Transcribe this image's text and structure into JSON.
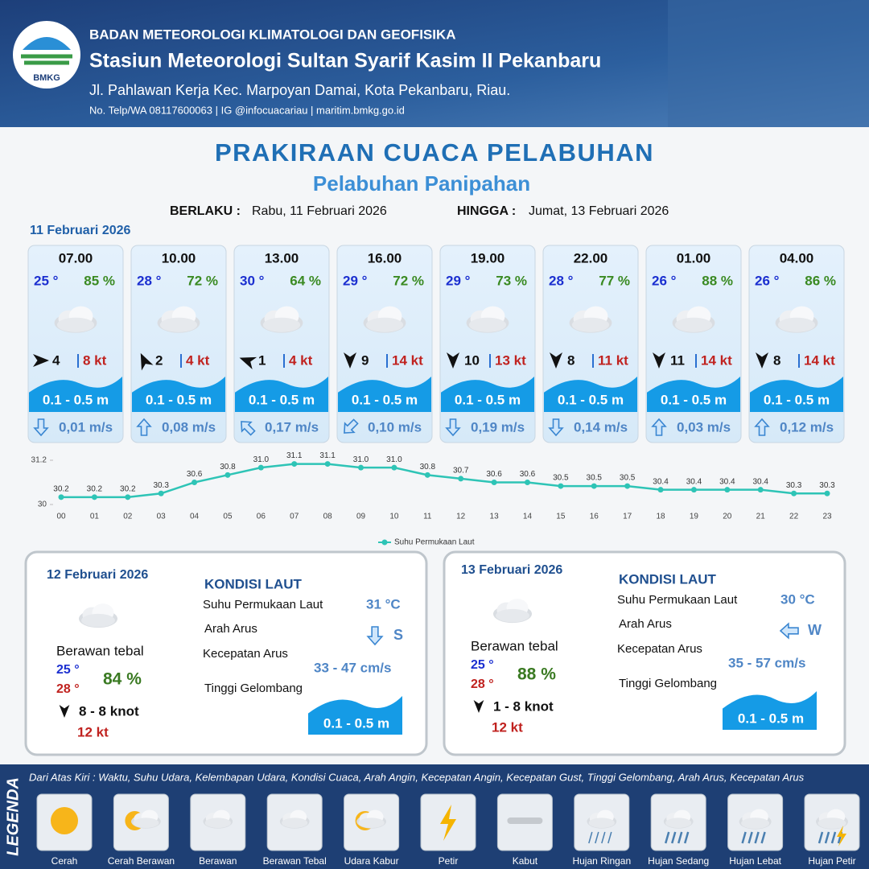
{
  "header": {
    "logo_text": "BMKG",
    "agency": "BADAN METEOROLOGI KLIMATOLOGI DAN GEOFISIKA",
    "station": "Stasiun Meteorologi Sultan Syarif Kasim II Pekanbaru",
    "address": "Jl. Pahlawan Kerja Kec. Marpoyan Damai, Kota Pekanbaru, Riau.",
    "contact": "No. Telp/WA 08117600063 | IG @infocuacariau | maritim.bmkg.go.id"
  },
  "title": "PRAKIRAAN CUACA PELABUHAN",
  "subtitle": "Pelabuhan Panipahan",
  "validity": {
    "from_label": "BERLAKU :",
    "from": "Rabu, 11 Februari 2026",
    "to_label": "HINGGA :",
    "to": "Jumat, 13 Februari 2026"
  },
  "day1": {
    "date": "11 Februari 2026",
    "forecasts": [
      {
        "time": "07.00",
        "temp": "25 °",
        "humidity": "85 %",
        "wind": "4",
        "gust": "8 kt",
        "wave": "0.1 - 0.5 m",
        "current": "0,01 m/s"
      },
      {
        "time": "10.00",
        "temp": "28 °",
        "humidity": "72 %",
        "wind": "2",
        "gust": "4 kt",
        "wave": "0.1 - 0.5 m",
        "current": "0,08 m/s"
      },
      {
        "time": "13.00",
        "temp": "30 °",
        "humidity": "64 %",
        "wind": "1",
        "gust": "4 kt",
        "wave": "0.1 - 0.5 m",
        "current": "0,17 m/s"
      },
      {
        "time": "16.00",
        "temp": "29 °",
        "humidity": "72 %",
        "wind": "9",
        "gust": "14 kt",
        "wave": "0.1 - 0.5 m",
        "current": "0,10 m/s"
      },
      {
        "time": "19.00",
        "temp": "29 °",
        "humidity": "73 %",
        "wind": "10",
        "gust": "13 kt",
        "wave": "0.1 - 0.5 m",
        "current": "0,19 m/s"
      },
      {
        "time": "22.00",
        "temp": "28 °",
        "humidity": "77 %",
        "wind": "8",
        "gust": "11 kt",
        "wave": "0.1 - 0.5 m",
        "current": "0,14 m/s"
      },
      {
        "time": "01.00",
        "temp": "26 °",
        "humidity": "88 %",
        "wind": "11",
        "gust": "14 kt",
        "wave": "0.1 - 0.5 m",
        "current": "0,03 m/s"
      },
      {
        "time": "04.00",
        "temp": "26 °",
        "humidity": "86 %",
        "wind": "8",
        "gust": "14 kt",
        "wave": "0.1 - 0.5 m",
        "current": "0,12 m/s"
      }
    ]
  },
  "chart_data": {
    "type": "line",
    "categories": [
      "00",
      "01",
      "02",
      "03",
      "04",
      "05",
      "06",
      "07",
      "08",
      "09",
      "10",
      "11",
      "12",
      "13",
      "14",
      "15",
      "16",
      "17",
      "18",
      "19",
      "20",
      "21",
      "22",
      "23"
    ],
    "series": [
      {
        "name": "Suhu Permukaan Laut",
        "color": "#2ec4b6",
        "values": [
          30.2,
          30.2,
          30.2,
          30.3,
          30.6,
          30.8,
          31.0,
          31.1,
          31.1,
          31.0,
          31.0,
          30.8,
          30.7,
          30.6,
          30.6,
          30.5,
          30.5,
          30.5,
          30.4,
          30.4,
          30.4,
          30.4,
          30.3,
          30.3
        ],
        "value_labels": [
          "30.2",
          "30.2",
          "30.2",
          "30.3",
          "30.6",
          "30.8",
          "31.0",
          "31.1",
          "31.1",
          "31.0",
          "31.0",
          "30.8",
          "30.7",
          "30.6",
          "30.6",
          "30.5",
          "30.5",
          "30.5",
          "30.4",
          "30.4",
          "30.4",
          "30.4",
          "30.3",
          "30.3"
        ]
      }
    ],
    "ylim": [
      30,
      31.2
    ],
    "yticks": [
      30,
      31.2
    ]
  },
  "days": [
    {
      "date": "12 Februari 2026",
      "condition": "Berawan tebal",
      "temp_min": "25 °",
      "temp_max": "28 °",
      "humidity": "84 %",
      "wind": "8  - 8 knot",
      "gust": "12 kt",
      "sea_heading": "KONDISI LAUT",
      "sst_label": "Suhu Permukaan Laut",
      "sst": "31 °C",
      "current_dir_label": "Arah Arus",
      "current_dir": "S",
      "current_speed_label": "Kecepatan Arus",
      "current_speed": "33  - 47 cm/s",
      "wave_label": "Tinggi Gelombang",
      "wave": "0.1 - 0.5 m"
    },
    {
      "date": "13 Februari 2026",
      "condition": "Berawan tebal",
      "temp_min": "25 °",
      "temp_max": "28 °",
      "humidity": "88 %",
      "wind": "1  - 8 knot",
      "gust": "12 kt",
      "sea_heading": "KONDISI LAUT",
      "sst_label": "Suhu Permukaan Laut",
      "sst": "30 °C",
      "current_dir_label": "Arah Arus",
      "current_dir": "W",
      "current_speed_label": "Kecepatan Arus",
      "current_speed": "35  - 57 cm/s",
      "wave_label": "Tinggi Gelombang",
      "wave": "0.1 - 0.5 m"
    }
  ],
  "legend": {
    "title": "LEGENDA",
    "description": "Dari Atas Kiri : Waktu, Suhu Udara, Kelembapan Udara, Kondisi Cuaca, Arah Angin, Kecepatan Angin, Kecepatan Gust, Tinggi Gelombang, Arah Arus, Kecepatan Arus",
    "items": [
      "Cerah",
      "Cerah Berawan",
      "Berawan",
      "Berawan Tebal",
      "Udara Kabur",
      "Petir",
      "Kabut",
      "Hujan Ringan",
      "Hujan Sedang",
      "Hujan Lebat",
      "Hujan Petir"
    ]
  }
}
